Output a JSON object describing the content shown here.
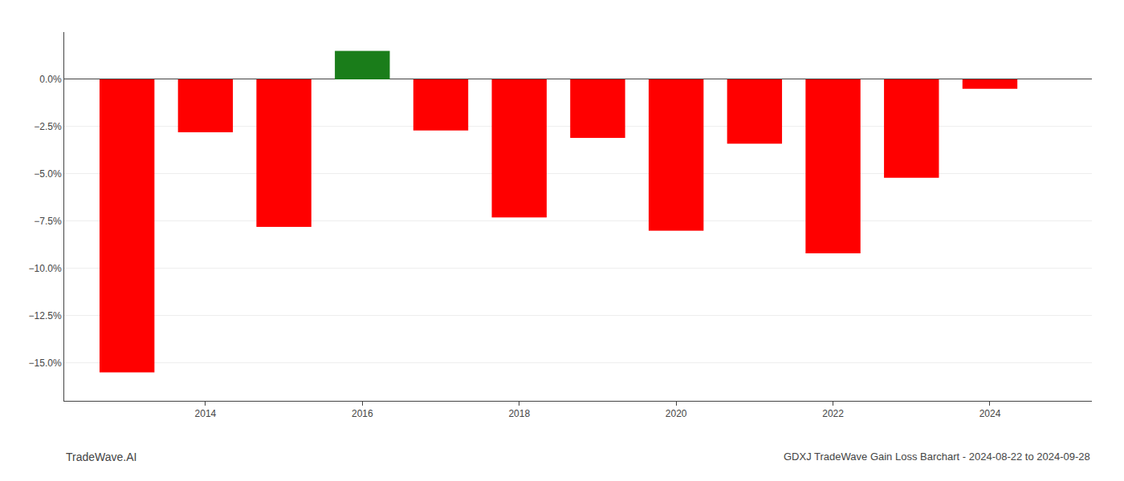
{
  "chart_data": {
    "type": "bar",
    "x": [
      2013,
      2014,
      2015,
      2016,
      2017,
      2018,
      2019,
      2020,
      2021,
      2022,
      2023,
      2024
    ],
    "values": [
      -15.5,
      -2.8,
      -7.8,
      1.5,
      -2.7,
      -7.3,
      -3.1,
      -8.0,
      -3.4,
      -9.2,
      -5.2,
      -0.5
    ],
    "colors": [
      "#ff0000",
      "#ff0000",
      "#ff0000",
      "#1a7d1a",
      "#ff0000",
      "#ff0000",
      "#ff0000",
      "#ff0000",
      "#ff0000",
      "#ff0000",
      "#ff0000",
      "#ff0000"
    ],
    "xlim": [
      2012.2,
      2025.3
    ],
    "xticks": [
      2014,
      2016,
      2018,
      2020,
      2022,
      2024
    ],
    "ylim": [
      -17,
      2.5
    ],
    "yticks": [
      {
        "value": 0.0,
        "label": "0.0%"
      },
      {
        "value": -2.5,
        "label": "−2.5%"
      },
      {
        "value": -5.0,
        "label": "−5.0%"
      },
      {
        "value": -7.5,
        "label": "−7.5%"
      },
      {
        "value": -10.0,
        "label": "−10.0%"
      },
      {
        "value": -12.5,
        "label": "−12.5%"
      },
      {
        "value": -15.0,
        "label": "−15.0%"
      }
    ],
    "grid": "y",
    "annotations": [
      "TradeWave.AI",
      "GDXJ TradeWave Gain Loss Barchart - 2024-08-22 to 2024-09-28"
    ]
  }
}
